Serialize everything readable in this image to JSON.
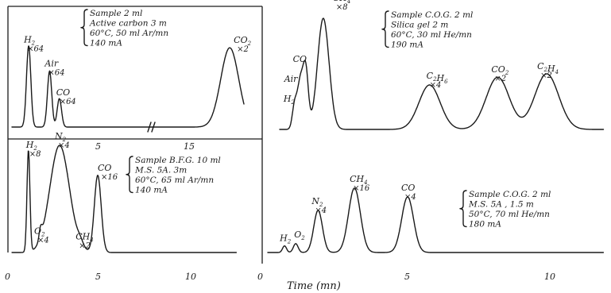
{
  "x_axis_label": "Time  (mn)",
  "chart_data": [
    {
      "type": "line",
      "panel": "top-left",
      "conditions": [
        "Sample  2 ml",
        "Active carbon  3 m",
        "60°C,  50 ml Ar/mn",
        "140 mA"
      ],
      "axis_ticks": [
        {
          "x": 5,
          "label": "5"
        },
        {
          "x": 15,
          "label": "15"
        }
      ],
      "axis_break_between": [
        9,
        10
      ],
      "peaks": [
        {
          "species": "H2",
          "t": 1.2,
          "h": 0.8,
          "w": 0.22,
          "mult": "×64"
        },
        {
          "species": "Air",
          "t": 2.7,
          "h": 0.55,
          "w": 0.22,
          "mult": "×64"
        },
        {
          "species": "CO",
          "t": 3.4,
          "h": 0.28,
          "w": 0.22,
          "mult": "×64"
        },
        {
          "species": "CO2",
          "t": 15.0,
          "h": 0.78,
          "w": 0.9,
          "mult": "×2"
        }
      ]
    },
    {
      "type": "line",
      "panel": "top-right",
      "conditions": [
        "Sample C.O.G.  2 ml",
        "Silica gel  2 m",
        "60°C,  30 ml He/mn",
        "190 mA"
      ],
      "peaks": [
        {
          "species": "H2",
          "t": 0.55,
          "h": 0.22,
          "w": 0.12,
          "mult": ""
        },
        {
          "species": "Air",
          "t": 0.75,
          "h": 0.4,
          "w": 0.14,
          "mult": ""
        },
        {
          "species": "CO",
          "t": 0.95,
          "h": 0.55,
          "w": 0.14,
          "mult": ""
        },
        {
          "species": "CH4",
          "t": 1.6,
          "h": 1.0,
          "w": 0.3,
          "mult": "×8"
        },
        {
          "species": "C2H6",
          "t": 5.5,
          "h": 0.4,
          "w": 0.55,
          "mult": "×4"
        },
        {
          "species": "CO2",
          "t": 8.0,
          "h": 0.47,
          "w": 0.6,
          "mult": "×2"
        },
        {
          "species": "C2H4",
          "t": 9.8,
          "h": 0.5,
          "w": 0.62,
          "mult": "×2"
        }
      ]
    },
    {
      "type": "line",
      "panel": "bottom-left",
      "conditions": [
        "Sample  B.F.G.  10 ml",
        "M.S. 5A.   3m",
        "60°C,  65 ml Ar/mn",
        "140 mA"
      ],
      "axis_ticks": [
        {
          "x": 0,
          "label": "0"
        },
        {
          "x": 5,
          "label": "5"
        },
        {
          "x": 10,
          "label": "10"
        }
      ],
      "peaks": [
        {
          "species": "H2",
          "t": 1.0,
          "h": 0.95,
          "w": 0.12,
          "mult": "×8"
        },
        {
          "species": "O2",
          "t": 1.7,
          "h": 0.1,
          "w": 0.12,
          "mult": "×4"
        },
        {
          "species": "N2",
          "t": 2.8,
          "h": 1.0,
          "w": 0.8,
          "mult": "×4"
        },
        {
          "species": "CH4",
          "t": 4.0,
          "h": 0.05,
          "w": 0.25,
          "mult": "×2"
        },
        {
          "species": "CO",
          "t": 5.0,
          "h": 0.72,
          "w": 0.28,
          "mult": "×16"
        }
      ]
    },
    {
      "type": "line",
      "panel": "bottom-right",
      "conditions": [
        "Sample  C.O.G.  2 ml",
        "M.S. 5A ,  1.5 m",
        "50°C,  70 ml He/mn",
        "180 mA"
      ],
      "axis_ticks": [
        {
          "x": 0,
          "label": "0"
        },
        {
          "x": 5,
          "label": "5"
        },
        {
          "x": 10,
          "label": "10"
        }
      ],
      "peaks": [
        {
          "species": "H2",
          "t": 0.6,
          "h": 0.06,
          "w": 0.1,
          "mult": ""
        },
        {
          "species": "O2",
          "t": 1.0,
          "h": 0.08,
          "w": 0.12,
          "mult": ""
        },
        {
          "species": "N2",
          "t": 1.8,
          "h": 0.38,
          "w": 0.22,
          "mult": "×4"
        },
        {
          "species": "CH4",
          "t": 3.1,
          "h": 0.58,
          "w": 0.3,
          "mult": "×16"
        },
        {
          "species": "CO",
          "t": 5.0,
          "h": 0.5,
          "w": 0.3,
          "mult": "×4"
        }
      ]
    }
  ]
}
